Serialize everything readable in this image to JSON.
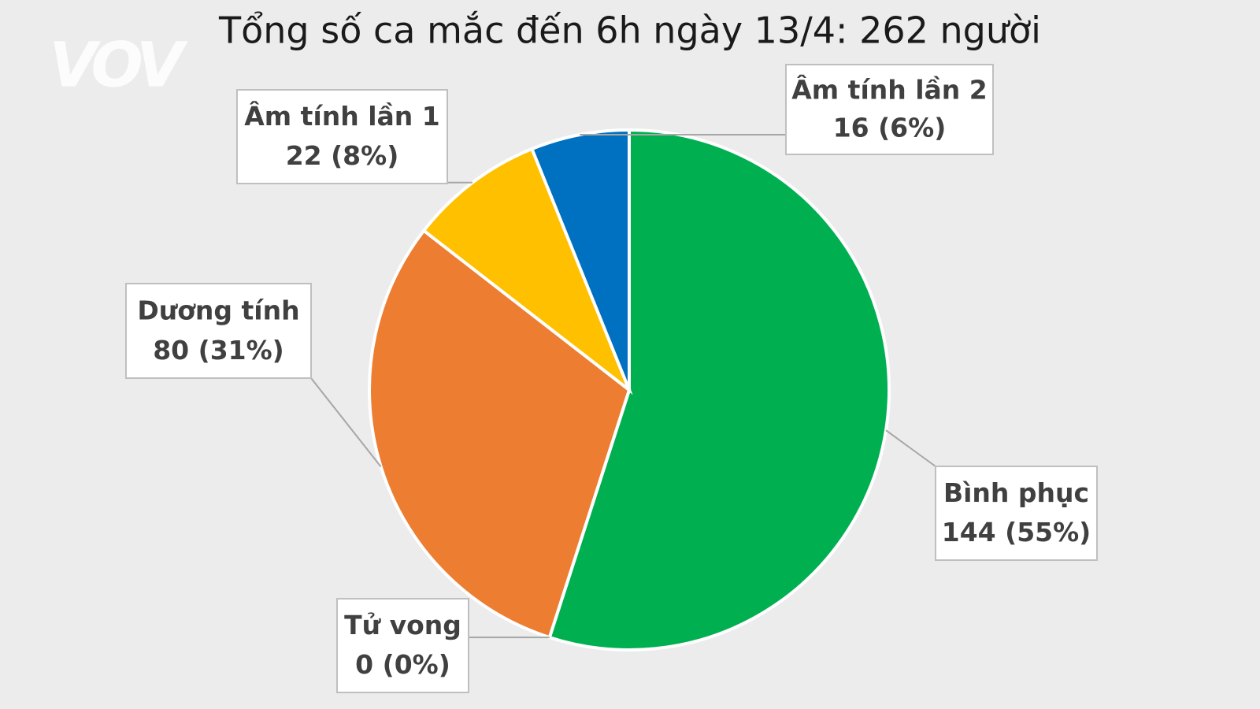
{
  "chart_data": {
    "type": "pie",
    "title": "Tổng số ca mắc đến 6h ngày 13/4: 262 người",
    "watermark": "VOV",
    "categories": [
      "Bình phục",
      "Tử vong",
      "Dương tính",
      "Âm tính lần 1",
      "Âm tính lần 2"
    ],
    "values": [
      144,
      0,
      80,
      22,
      16
    ],
    "value_labels": [
      "144 (55%)",
      "0 (0%)",
      "80 (31%)",
      "22 (8%)",
      "16 (6%)"
    ],
    "colors": [
      "#00b050",
      "#7f7f7f",
      "#ed7d31",
      "#ffc000",
      "#0070c0"
    ]
  }
}
